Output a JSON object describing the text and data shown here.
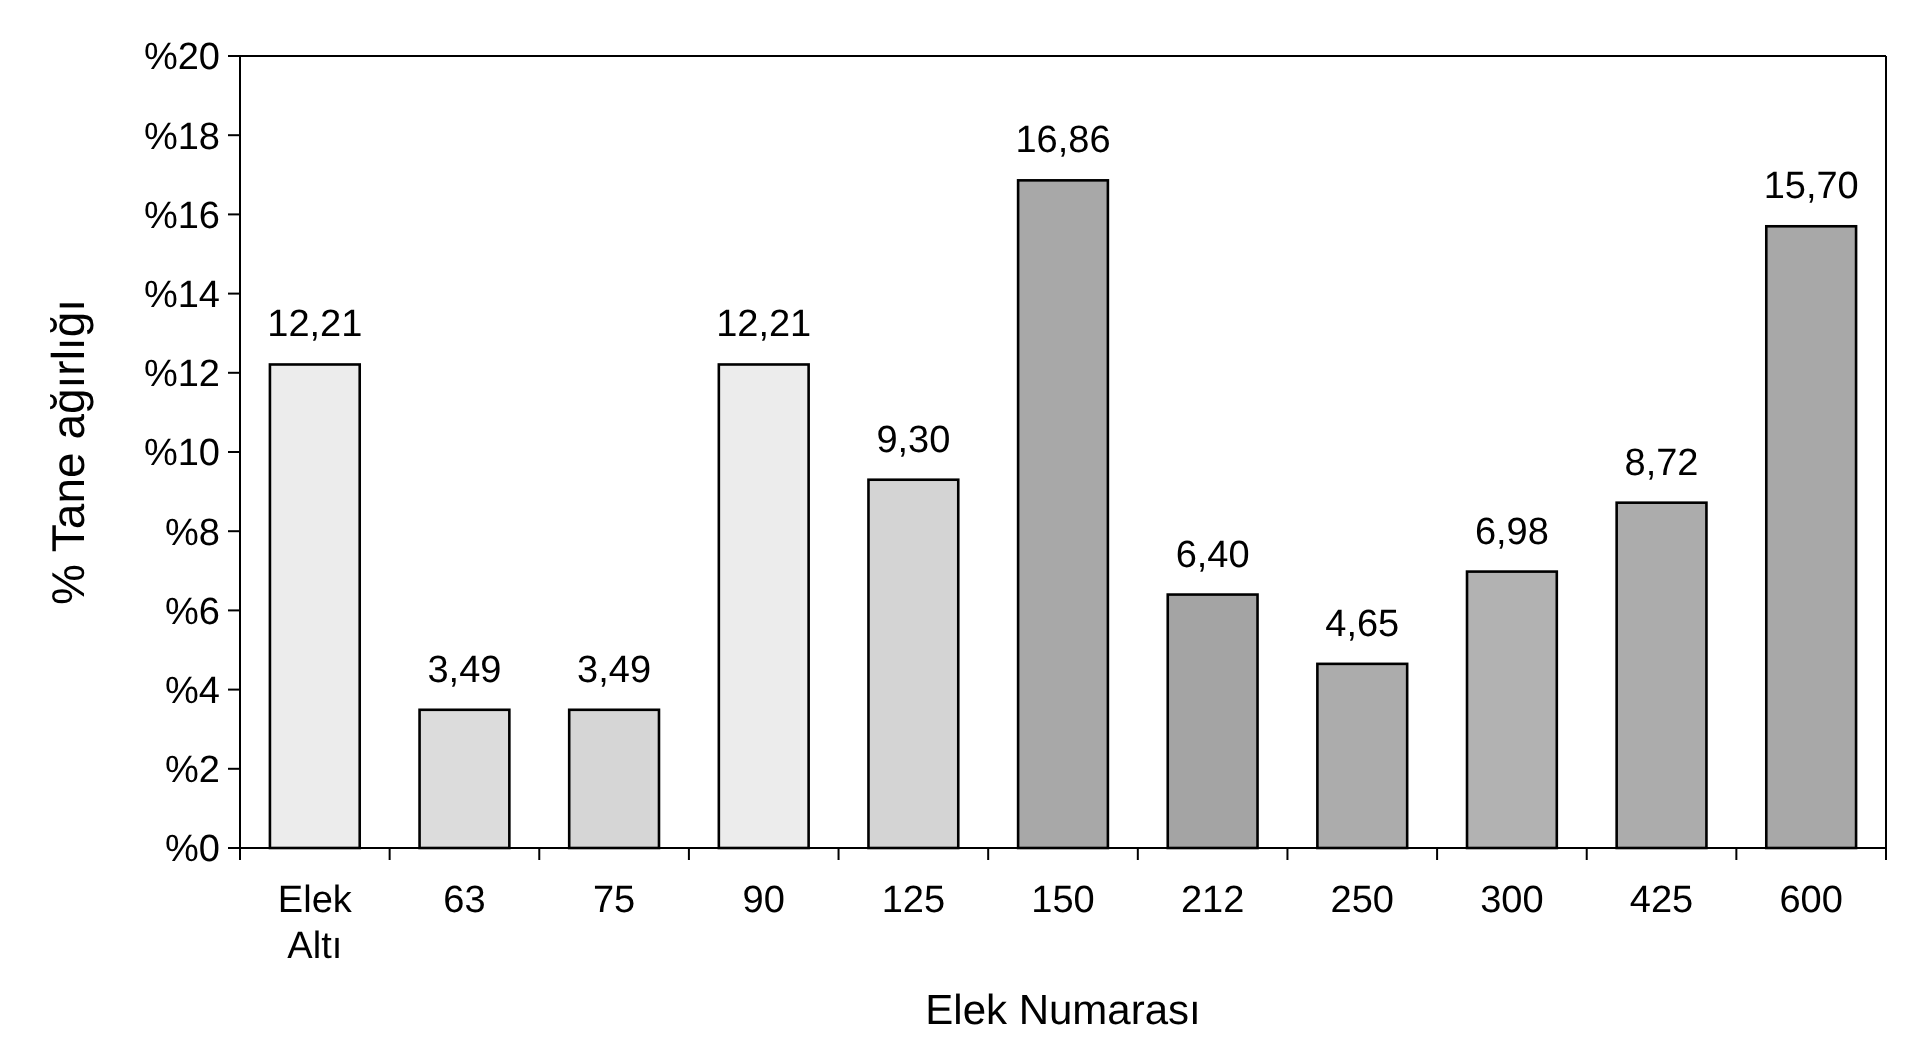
{
  "chart_data": {
    "type": "bar",
    "xlabel": "Elek Numarası",
    "ylabel": "% Tane ağırlığı",
    "categories": [
      "Elek Altı",
      "63",
      "75",
      "90",
      "125",
      "150",
      "212",
      "250",
      "300",
      "425",
      "600"
    ],
    "values": [
      12.21,
      3.49,
      3.49,
      12.21,
      9.3,
      16.86,
      6.4,
      4.65,
      6.98,
      8.72,
      15.7
    ],
    "value_labels": [
      "12,21",
      "3,49",
      "3,49",
      "12,21",
      "9,30",
      "16,86",
      "6,40",
      "4,65",
      "6,98",
      "8,72",
      "15,70"
    ],
    "colors": [
      "#ececec",
      "#dcdcdc",
      "#d6d6d6",
      "#ececec",
      "#d4d4d4",
      "#a8a8a8",
      "#a4a4a4",
      "#acacac",
      "#b2b2b2",
      "#acacac",
      "#a8a8a8"
    ],
    "ylim": [
      0,
      20
    ],
    "yticks": [
      {
        "value": 0,
        "label": "%0"
      },
      {
        "value": 2,
        "label": "%2"
      },
      {
        "value": 4,
        "label": "%4"
      },
      {
        "value": 6,
        "label": "%6"
      },
      {
        "value": 8,
        "label": "%8"
      },
      {
        "value": 10,
        "label": "%10"
      },
      {
        "value": 12,
        "label": "%12"
      },
      {
        "value": 14,
        "label": "%14"
      },
      {
        "value": 16,
        "label": "%16"
      },
      {
        "value": 18,
        "label": "%18"
      },
      {
        "value": 20,
        "label": "%20"
      }
    ],
    "grid": false
  }
}
